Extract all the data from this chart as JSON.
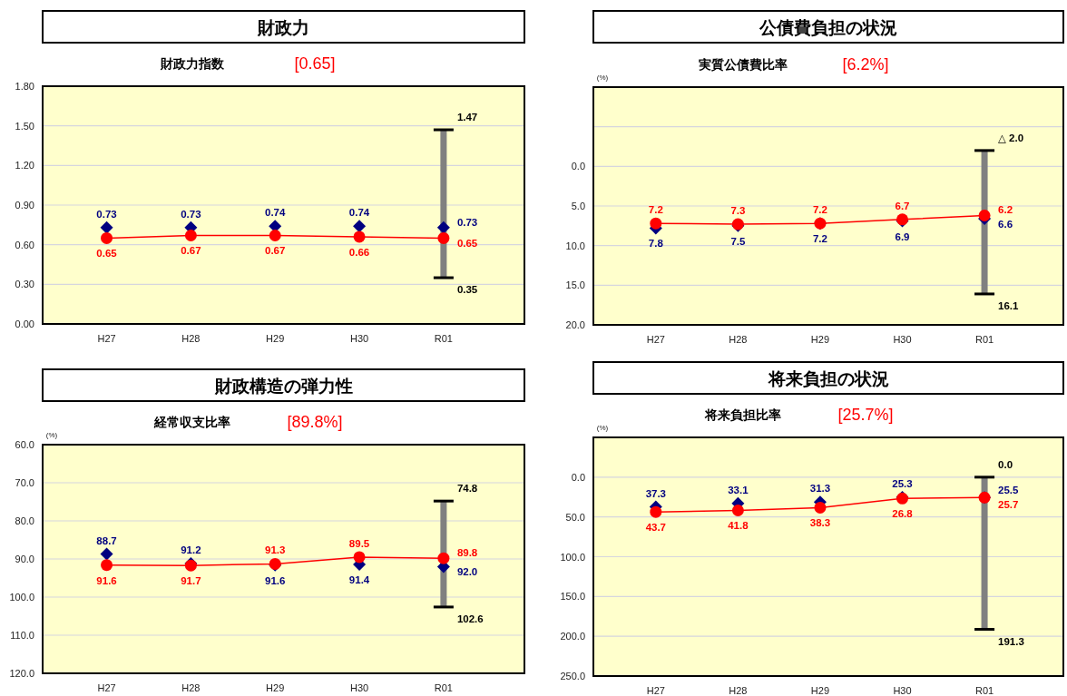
{
  "chart_data": [
    {
      "type": "line",
      "title": "財政力",
      "subtitle": "財政力指数",
      "annotations": [
        "[0.65]",
        {
          "text": "1.47",
          "x": "R01",
          "y": 1.47
        },
        {
          "text": "0.35",
          "x": "R01",
          "y": 0.35
        }
      ],
      "categories": [
        "H27",
        "H28",
        "H29",
        "H30",
        "R01"
      ],
      "series": [
        {
          "type": "bar",
          "color": "#808080",
          "base": [
            null,
            null,
            null,
            null,
            0.35
          ],
          "values": [
            null,
            null,
            null,
            null,
            1.12
          ]
        },
        {
          "type": "scatter",
          "color": "#000080",
          "marker": "diamond",
          "values": [
            0.73,
            0.73,
            0.74,
            0.74,
            0.73
          ],
          "value_labels": [
            "0.73",
            "0.73",
            "0.74",
            "0.74",
            "0.73"
          ]
        },
        {
          "type": "line",
          "color": "#ff0000",
          "marker": "circle",
          "values": [
            0.65,
            0.67,
            0.67,
            0.66,
            0.65
          ],
          "value_labels": [
            "0.65",
            "0.67",
            "0.67",
            "0.66",
            "0.65"
          ]
        }
      ],
      "ylim": [
        0,
        1.8
      ],
      "yticks": [
        {
          "value": 0,
          "label": "0.00"
        },
        {
          "value": 0.3,
          "label": "0.30"
        },
        {
          "value": 0.6,
          "label": "0.60"
        },
        {
          "value": 0.9,
          "label": "0.90"
        },
        {
          "value": 1.2,
          "label": "1.20"
        },
        {
          "value": 1.5,
          "label": "1.50"
        },
        {
          "value": 1.8,
          "label": "1.80"
        }
      ],
      "grid": "y"
    },
    {
      "type": "line",
      "title": "公債費負担の状況",
      "subtitle": "実質公債費比率",
      "ylabel": "(%)",
      "annotations": [
        "[6.2%]",
        {
          "text": "△ 2.0",
          "x": "R01",
          "y": -2.0
        },
        {
          "text": "16.1",
          "x": "R01",
          "y": 16.1
        }
      ],
      "categories": [
        "H27",
        "H28",
        "H29",
        "H30",
        "R01"
      ],
      "series": [
        {
          "type": "bar",
          "color": "#808080",
          "base": [
            null,
            null,
            null,
            null,
            -2.0
          ],
          "values": [
            null,
            null,
            null,
            null,
            18.1
          ]
        },
        {
          "type": "scatter",
          "color": "#000080",
          "marker": "diamond",
          "values": [
            7.8,
            7.5,
            7.2,
            6.9,
            6.6
          ],
          "value_labels": [
            "7.8",
            "7.5",
            "7.2",
            "6.9",
            "6.6"
          ]
        },
        {
          "type": "line",
          "color": "#ff0000",
          "marker": "circle",
          "values": [
            7.2,
            7.3,
            7.2,
            6.7,
            6.2
          ],
          "value_labels": [
            "7.2",
            "7.3",
            "7.2",
            "6.7",
            "6.2"
          ]
        }
      ],
      "ylim": [
        20,
        -10
      ],
      "yticks": [
        {
          "value": -5,
          "label": null
        },
        {
          "value": 0,
          "label": "0.0"
        },
        {
          "value": 5,
          "label": "5.0"
        },
        {
          "value": 10,
          "label": "10.0"
        },
        {
          "value": 15,
          "label": "15.0"
        },
        {
          "value": 20,
          "label": "20.0"
        }
      ],
      "grid": "y"
    },
    {
      "type": "line",
      "title": "財政構造の弾力性",
      "subtitle": "経常収支比率",
      "ylabel": "(%)",
      "annotations": [
        "[89.8%]",
        {
          "text": "74.8",
          "x": "R01",
          "y": 74.8
        },
        {
          "text": "102.6",
          "x": "R01",
          "y": 102.6
        }
      ],
      "categories": [
        "H27",
        "H28",
        "H29",
        "H30",
        "R01"
      ],
      "series": [
        {
          "type": "bar",
          "color": "#808080",
          "base": [
            null,
            null,
            null,
            null,
            74.8
          ],
          "values": [
            null,
            null,
            null,
            null,
            27.8
          ]
        },
        {
          "type": "scatter",
          "color": "#000080",
          "marker": "diamond",
          "values": [
            88.7,
            91.2,
            91.6,
            91.4,
            92.0
          ],
          "value_labels": [
            "88.7",
            "91.2",
            "91.6",
            "91.4",
            "92.0"
          ]
        },
        {
          "type": "line",
          "color": "#ff0000",
          "marker": "circle",
          "values": [
            91.6,
            91.7,
            91.3,
            89.5,
            89.8
          ],
          "value_labels": [
            "91.6",
            "91.7",
            "91.3",
            "89.5",
            "89.8"
          ]
        }
      ],
      "ylim": [
        120,
        60
      ],
      "yticks": [
        {
          "value": 60,
          "label": "60.0"
        },
        {
          "value": 70,
          "label": "70.0"
        },
        {
          "value": 80,
          "label": "80.0"
        },
        {
          "value": 90,
          "label": "90.0"
        },
        {
          "value": 100,
          "label": "100.0"
        },
        {
          "value": 110,
          "label": "110.0"
        },
        {
          "value": 120,
          "label": "120.0"
        }
      ],
      "grid": "y"
    },
    {
      "type": "line",
      "title": "将来負担の状況",
      "subtitle": "将来負担比率",
      "ylabel": "(%)",
      "annotations": [
        "[25.7%]",
        {
          "text": "0.0",
          "x": "R01",
          "y": 0.0
        },
        {
          "text": "191.3",
          "x": "R01",
          "y": 191.3
        }
      ],
      "categories": [
        "H27",
        "H28",
        "H29",
        "H30",
        "R01"
      ],
      "series": [
        {
          "type": "bar",
          "color": "#808080",
          "base": [
            null,
            null,
            null,
            null,
            0.0
          ],
          "values": [
            null,
            null,
            null,
            null,
            191.3
          ]
        },
        {
          "type": "scatter",
          "color": "#000080",
          "marker": "diamond",
          "values": [
            37.3,
            33.1,
            31.3,
            25.3,
            25.5
          ],
          "value_labels": [
            "37.3",
            "33.1",
            "31.3",
            "25.3",
            "25.5"
          ]
        },
        {
          "type": "line",
          "color": "#ff0000",
          "marker": "circle",
          "values": [
            43.7,
            41.8,
            38.3,
            26.8,
            25.7
          ],
          "value_labels": [
            "43.7",
            "41.8",
            "38.3",
            "26.8",
            "25.7"
          ]
        }
      ],
      "ylim": [
        250,
        -50
      ],
      "yticks": [
        {
          "value": 0,
          "label": "0.0"
        },
        {
          "value": 50,
          "label": "50.0"
        },
        {
          "value": 100,
          "label": "100.0"
        },
        {
          "value": 150,
          "label": "150.0"
        },
        {
          "value": 200,
          "label": "200.0"
        },
        {
          "value": 250,
          "label": "250.0"
        }
      ],
      "grid": "y"
    }
  ]
}
